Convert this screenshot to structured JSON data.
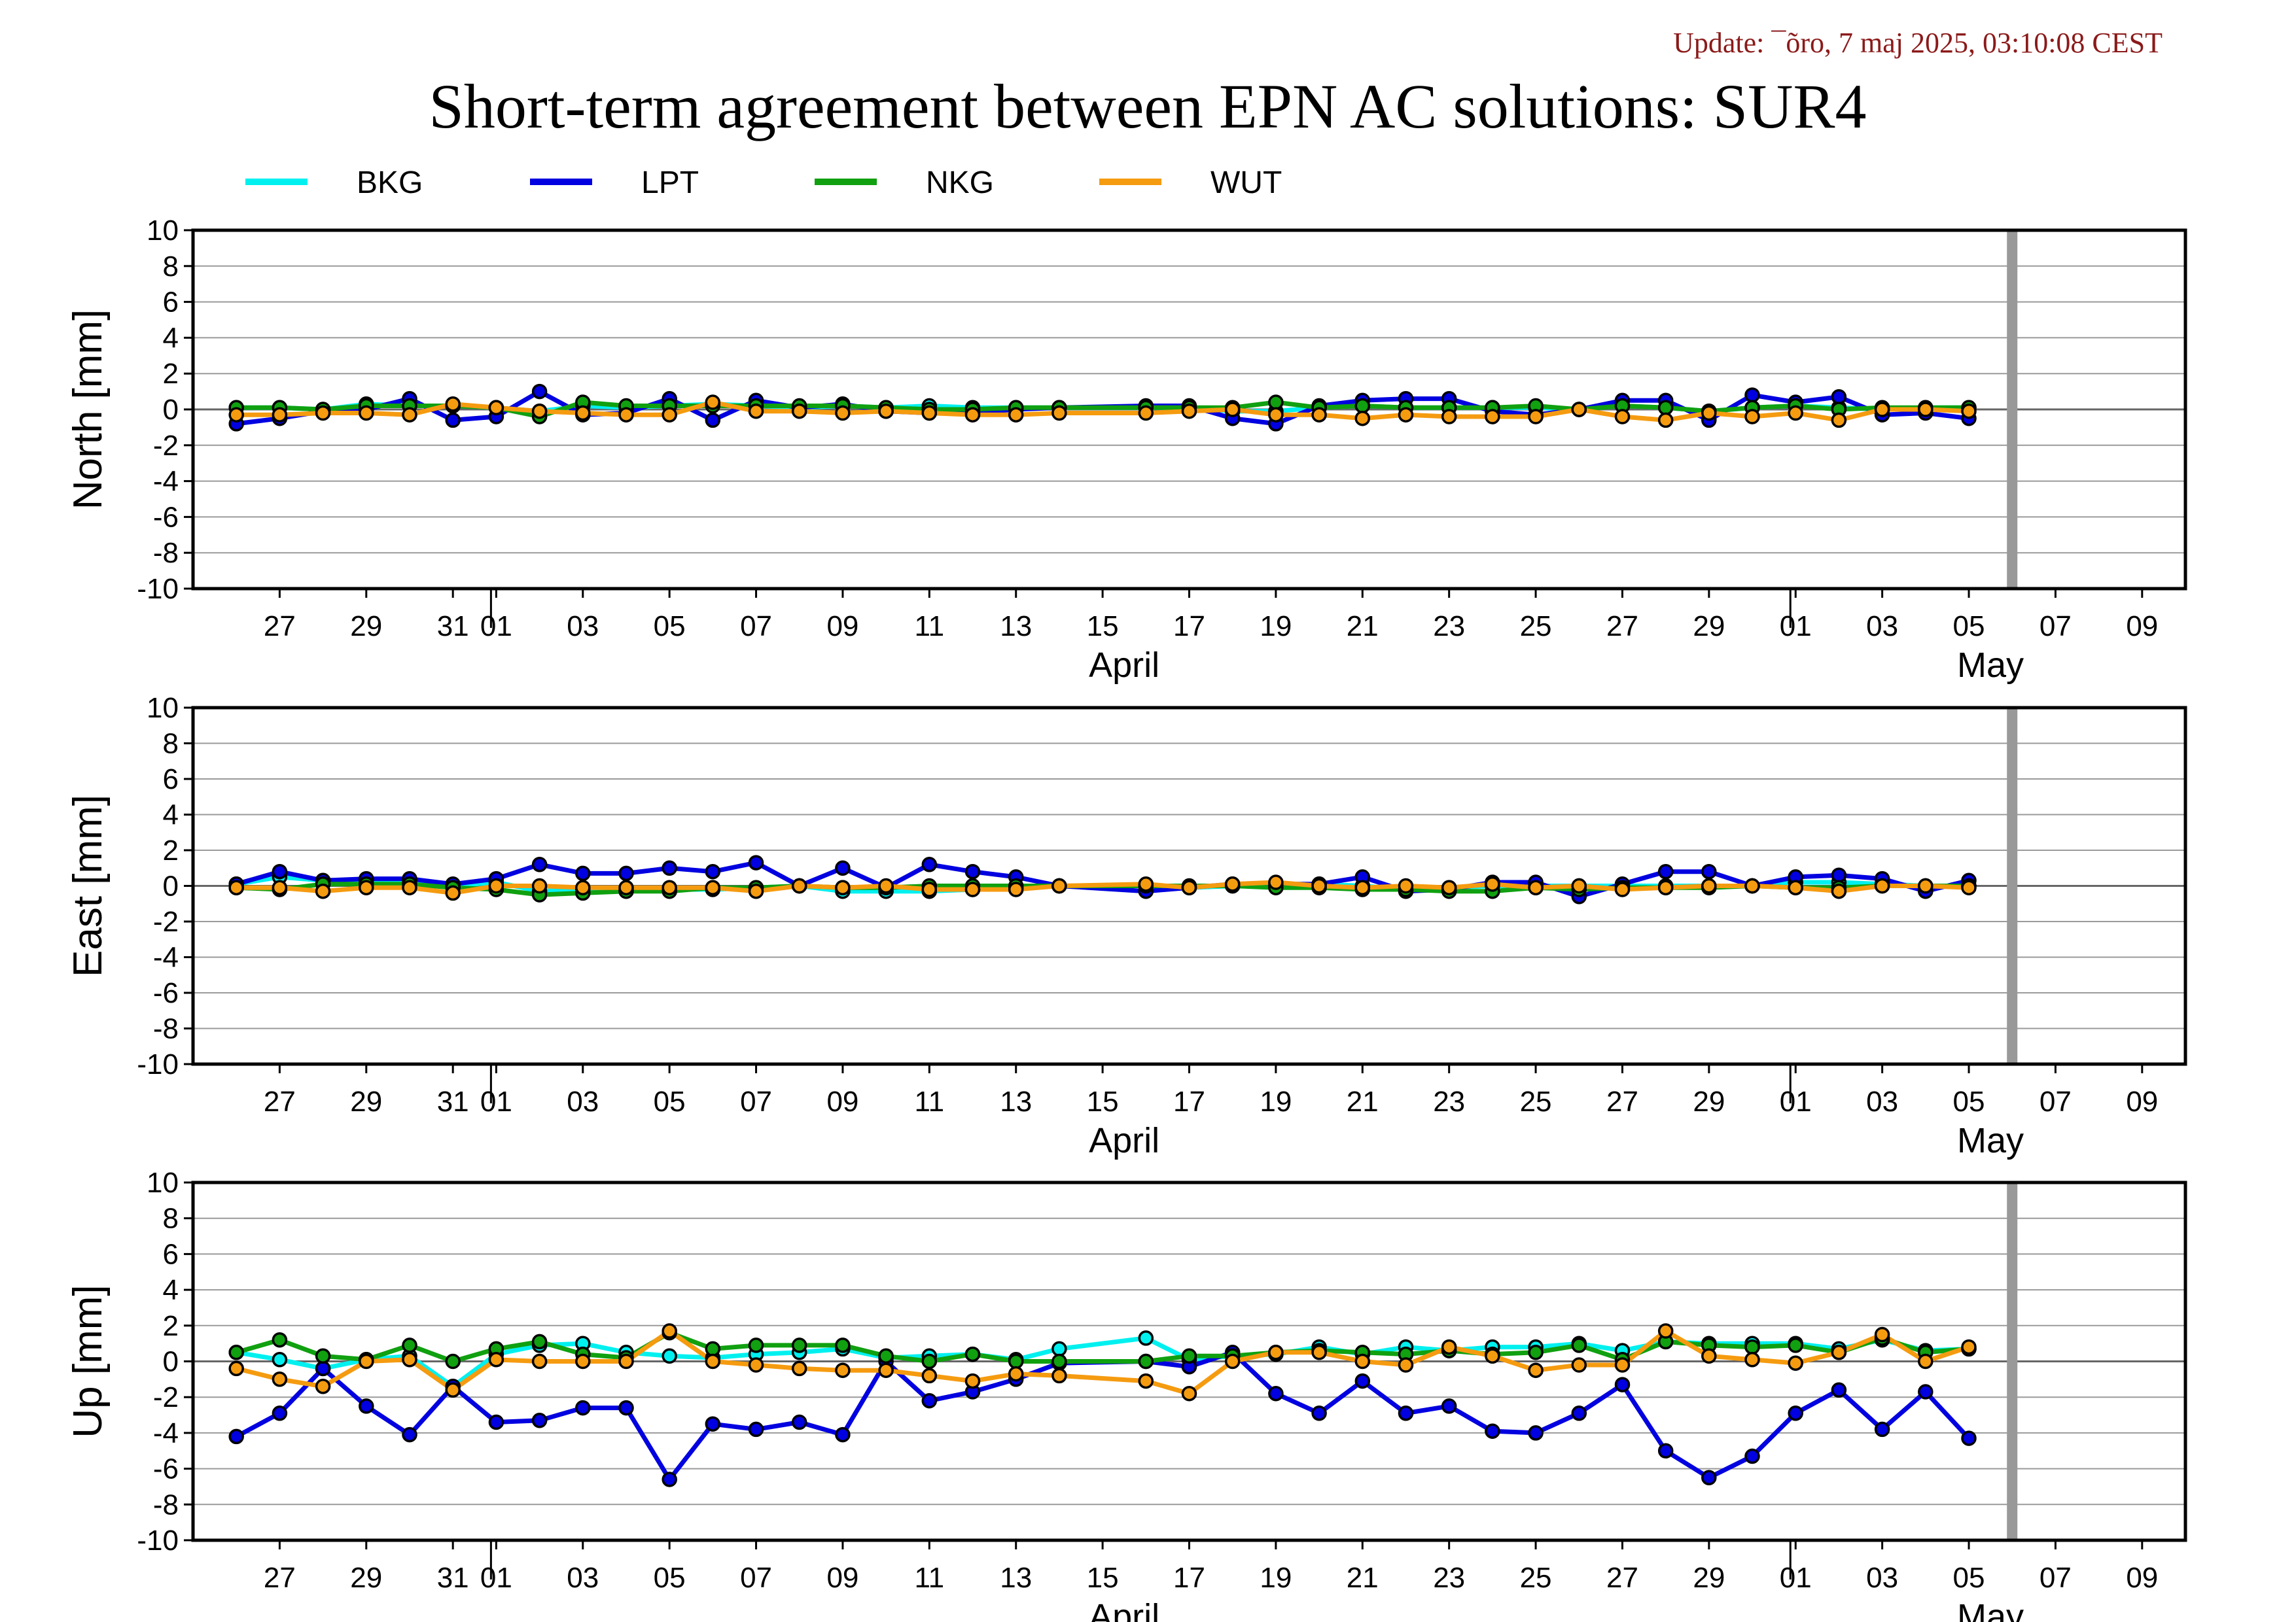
{
  "update_text": "Update: ¯õro, 7 maj 2025, 03:10:08 CEST",
  "chart_title": "Short-term agreement between EPN AC solutions: SUR4",
  "chart_data": [
    {
      "type": "line",
      "ylabel": "North [mm]",
      "ylim": [
        -10,
        10
      ],
      "yticks": [
        10,
        8,
        6,
        4,
        2,
        0,
        -2,
        -4,
        -6,
        -8,
        -10
      ],
      "x_domain": [
        "2025-03-25",
        "2025-05-10"
      ],
      "x_tick_dates": [
        "2025-03-27",
        "2025-03-29",
        "2025-03-31",
        "2025-04-01",
        "2025-04-03",
        "2025-04-05",
        "2025-04-07",
        "2025-04-09",
        "2025-04-11",
        "2025-04-13",
        "2025-04-15",
        "2025-04-17",
        "2025-04-19",
        "2025-04-21",
        "2025-04-23",
        "2025-04-25",
        "2025-04-27",
        "2025-04-29",
        "2025-05-01",
        "2025-05-03",
        "2025-05-05",
        "2025-05-07",
        "2025-05-09"
      ],
      "x_tick_labels": [
        "27",
        "29",
        "31",
        "01",
        "03",
        "05",
        "07",
        "09",
        "11",
        "13",
        "15",
        "17",
        "19",
        "21",
        "23",
        "25",
        "27",
        "29",
        "01",
        "03",
        "05",
        "07",
        "09"
      ],
      "month_labels": [
        {
          "date": "2025-04-15",
          "label": "April"
        },
        {
          "date": "2025-05-05",
          "label": "May"
        }
      ],
      "month_dividers": [
        "2025-04-01",
        "2025-05-01"
      ],
      "marker_date": "2025-05-06",
      "dates": [
        "2025-03-26",
        "2025-03-27",
        "2025-03-28",
        "2025-03-29",
        "2025-03-30",
        "2025-03-31",
        "2025-04-01",
        "2025-04-02",
        "2025-04-03",
        "2025-04-04",
        "2025-04-05",
        "2025-04-06",
        "2025-04-07",
        "2025-04-08",
        "2025-04-09",
        "2025-04-10",
        "2025-04-11",
        "2025-04-12",
        "2025-04-13",
        "2025-04-14",
        "2025-04-16",
        "2025-04-17",
        "2025-04-18",
        "2025-04-19",
        "2025-04-20",
        "2025-04-21",
        "2025-04-22",
        "2025-04-23",
        "2025-04-24",
        "2025-04-25",
        "2025-04-26",
        "2025-04-27",
        "2025-04-28",
        "2025-04-29",
        "2025-04-30",
        "2025-05-01",
        "2025-05-02",
        "2025-05-03",
        "2025-05-04",
        "2025-05-05"
      ],
      "series": [
        {
          "name": "BKG",
          "color": "#00f0f0",
          "values": [
            0.1,
            0.1,
            0.0,
            0.3,
            0.2,
            0.2,
            0.1,
            -0.1,
            0.2,
            0.1,
            0.2,
            0.3,
            0.2,
            0.1,
            0.2,
            0.1,
            0.2,
            0.1,
            0.1,
            0.1,
            0.1,
            0.1,
            -0.1,
            -0.1,
            0.1,
            0.2,
            0.1,
            0.1,
            0.1,
            0.1,
            0.0,
            0.2,
            0.1,
            -0.1,
            0.1,
            0.2,
            0.1,
            0.0,
            0.1,
            0.1
          ]
        },
        {
          "name": "LPT",
          "color": "#0000e0",
          "values": [
            -0.8,
            -0.5,
            -0.1,
            0.0,
            0.6,
            -0.6,
            -0.4,
            1.0,
            -0.3,
            -0.2,
            0.6,
            -0.6,
            0.5,
            0.1,
            0.3,
            -0.1,
            -0.2,
            -0.2,
            0.0,
            0.1,
            0.2,
            0.2,
            -0.5,
            -0.8,
            0.2,
            0.5,
            0.6,
            0.6,
            -0.1,
            -0.3,
            0.0,
            0.5,
            0.5,
            -0.6,
            0.8,
            0.4,
            0.7,
            -0.3,
            -0.2,
            -0.5
          ]
        },
        {
          "name": "NKG",
          "color": "#10a010",
          "values": [
            0.1,
            0.1,
            0.0,
            0.2,
            0.2,
            0.2,
            0.1,
            -0.4,
            0.4,
            0.2,
            0.2,
            0.2,
            0.2,
            0.2,
            0.2,
            0.1,
            0.0,
            0.0,
            0.1,
            0.1,
            0.1,
            0.1,
            0.1,
            0.4,
            0.1,
            0.2,
            0.1,
            0.1,
            0.1,
            0.2,
            0.0,
            0.2,
            0.1,
            -0.1,
            0.1,
            0.2,
            0.0,
            0.1,
            0.1,
            0.1
          ]
        },
        {
          "name": "WUT",
          "color": "#f59b10",
          "values": [
            -0.3,
            -0.3,
            -0.2,
            -0.2,
            -0.3,
            0.3,
            0.1,
            -0.1,
            -0.2,
            -0.3,
            -0.3,
            0.4,
            -0.1,
            -0.1,
            -0.2,
            -0.1,
            -0.2,
            -0.3,
            -0.3,
            -0.2,
            -0.2,
            -0.1,
            0.0,
            -0.3,
            -0.3,
            -0.5,
            -0.3,
            -0.4,
            -0.4,
            -0.4,
            0.0,
            -0.4,
            -0.6,
            -0.2,
            -0.4,
            -0.2,
            -0.6,
            0.0,
            0.0,
            -0.1
          ]
        }
      ]
    },
    {
      "type": "line",
      "ylabel": "East [mm]",
      "ylim": [
        -10,
        10
      ],
      "yticks": [
        10,
        8,
        6,
        4,
        2,
        0,
        -2,
        -4,
        -6,
        -8,
        -10
      ],
      "x_domain": [
        "2025-03-25",
        "2025-05-10"
      ],
      "x_tick_dates": [
        "2025-03-27",
        "2025-03-29",
        "2025-03-31",
        "2025-04-01",
        "2025-04-03",
        "2025-04-05",
        "2025-04-07",
        "2025-04-09",
        "2025-04-11",
        "2025-04-13",
        "2025-04-15",
        "2025-04-17",
        "2025-04-19",
        "2025-04-21",
        "2025-04-23",
        "2025-04-25",
        "2025-04-27",
        "2025-04-29",
        "2025-05-01",
        "2025-05-03",
        "2025-05-05",
        "2025-05-07",
        "2025-05-09"
      ],
      "x_tick_labels": [
        "27",
        "29",
        "31",
        "01",
        "03",
        "05",
        "07",
        "09",
        "11",
        "13",
        "15",
        "17",
        "19",
        "21",
        "23",
        "25",
        "27",
        "29",
        "01",
        "03",
        "05",
        "07",
        "09"
      ],
      "month_labels": [
        {
          "date": "2025-04-15",
          "label": "April"
        },
        {
          "date": "2025-05-05",
          "label": "May"
        }
      ],
      "month_dividers": [
        "2025-04-01",
        "2025-05-01"
      ],
      "marker_date": "2025-05-06",
      "dates": [
        "2025-03-26",
        "2025-03-27",
        "2025-03-28",
        "2025-03-29",
        "2025-03-30",
        "2025-03-31",
        "2025-04-01",
        "2025-04-02",
        "2025-04-03",
        "2025-04-04",
        "2025-04-05",
        "2025-04-06",
        "2025-04-07",
        "2025-04-08",
        "2025-04-09",
        "2025-04-10",
        "2025-04-11",
        "2025-04-12",
        "2025-04-13",
        "2025-04-14",
        "2025-04-16",
        "2025-04-17",
        "2025-04-18",
        "2025-04-19",
        "2025-04-20",
        "2025-04-21",
        "2025-04-22",
        "2025-04-23",
        "2025-04-24",
        "2025-04-25",
        "2025-04-26",
        "2025-04-27",
        "2025-04-28",
        "2025-04-29",
        "2025-04-30",
        "2025-05-01",
        "2025-05-02",
        "2025-05-03",
        "2025-05-04",
        "2025-05-05"
      ],
      "series": [
        {
          "name": "BKG",
          "color": "#00f0f0",
          "values": [
            0.1,
            0.5,
            0.3,
            0.3,
            0.3,
            0.0,
            0.2,
            -0.3,
            -0.2,
            -0.2,
            -0.2,
            -0.2,
            -0.1,
            0.0,
            -0.3,
            -0.3,
            -0.3,
            -0.2,
            -0.1,
            0.0,
            0.0,
            -0.1,
            0.0,
            0.0,
            0.1,
            0.0,
            -0.2,
            -0.1,
            0.0,
            0.0,
            0.0,
            0.0,
            0.0,
            0.0,
            0.0,
            0.2,
            0.2,
            0.1,
            0.0,
            0.0
          ]
        },
        {
          "name": "LPT",
          "color": "#0000e0",
          "values": [
            0.1,
            0.8,
            0.3,
            0.4,
            0.4,
            0.1,
            0.4,
            1.2,
            0.7,
            0.7,
            1.0,
            0.8,
            1.3,
            0.0,
            1.0,
            -0.1,
            1.2,
            0.8,
            0.5,
            0.0,
            -0.3,
            -0.1,
            0.1,
            0.1,
            0.1,
            0.5,
            -0.3,
            -0.2,
            0.2,
            0.2,
            -0.6,
            0.1,
            0.8,
            0.8,
            0.0,
            0.5,
            0.6,
            0.4,
            -0.3,
            0.3
          ]
        },
        {
          "name": "NKG",
          "color": "#10a010",
          "values": [
            -0.1,
            -0.2,
            0.1,
            0.1,
            0.1,
            -0.1,
            -0.2,
            -0.5,
            -0.4,
            -0.3,
            -0.3,
            -0.1,
            -0.1,
            0.0,
            -0.1,
            -0.1,
            0.0,
            0.0,
            0.0,
            0.0,
            0.0,
            0.0,
            0.0,
            -0.1,
            -0.1,
            -0.2,
            -0.2,
            -0.3,
            -0.3,
            -0.1,
            -0.2,
            -0.1,
            -0.1,
            -0.1,
            0.0,
            -0.1,
            -0.1,
            0.0,
            0.0,
            0.0
          ]
        },
        {
          "name": "WUT",
          "color": "#f59b10",
          "values": [
            -0.1,
            -0.1,
            -0.3,
            -0.1,
            -0.1,
            -0.4,
            0.0,
            0.0,
            -0.1,
            -0.1,
            -0.1,
            -0.1,
            -0.3,
            0.0,
            -0.1,
            0.0,
            -0.2,
            -0.2,
            -0.2,
            0.0,
            0.1,
            -0.1,
            0.1,
            0.2,
            0.0,
            -0.1,
            0.0,
            -0.1,
            0.1,
            -0.1,
            0.0,
            -0.2,
            -0.1,
            0.0,
            0.0,
            -0.1,
            -0.3,
            0.0,
            0.0,
            -0.1
          ]
        }
      ]
    },
    {
      "type": "line",
      "ylabel": "Up [mm]",
      "ylim": [
        -10,
        10
      ],
      "yticks": [
        10,
        8,
        6,
        4,
        2,
        0,
        -2,
        -4,
        -6,
        -8,
        -10
      ],
      "x_domain": [
        "2025-03-25",
        "2025-05-10"
      ],
      "x_tick_dates": [
        "2025-03-27",
        "2025-03-29",
        "2025-03-31",
        "2025-04-01",
        "2025-04-03",
        "2025-04-05",
        "2025-04-07",
        "2025-04-09",
        "2025-04-11",
        "2025-04-13",
        "2025-04-15",
        "2025-04-17",
        "2025-04-19",
        "2025-04-21",
        "2025-04-23",
        "2025-04-25",
        "2025-04-27",
        "2025-04-29",
        "2025-05-01",
        "2025-05-03",
        "2025-05-05",
        "2025-05-07",
        "2025-05-09"
      ],
      "x_tick_labels": [
        "27",
        "29",
        "31",
        "01",
        "03",
        "05",
        "07",
        "09",
        "11",
        "13",
        "15",
        "17",
        "19",
        "21",
        "23",
        "25",
        "27",
        "29",
        "01",
        "03",
        "05",
        "07",
        "09"
      ],
      "month_labels": [
        {
          "date": "2025-04-15",
          "label": "April"
        },
        {
          "date": "2025-05-05",
          "label": "May"
        }
      ],
      "month_dividers": [
        "2025-04-01",
        "2025-05-01"
      ],
      "marker_date": "2025-05-06",
      "dates": [
        "2025-03-26",
        "2025-03-27",
        "2025-03-28",
        "2025-03-29",
        "2025-03-30",
        "2025-03-31",
        "2025-04-01",
        "2025-04-02",
        "2025-04-03",
        "2025-04-04",
        "2025-04-05",
        "2025-04-06",
        "2025-04-07",
        "2025-04-08",
        "2025-04-09",
        "2025-04-10",
        "2025-04-11",
        "2025-04-12",
        "2025-04-13",
        "2025-04-14",
        "2025-04-16",
        "2025-04-17",
        "2025-04-18",
        "2025-04-19",
        "2025-04-20",
        "2025-04-21",
        "2025-04-22",
        "2025-04-23",
        "2025-04-24",
        "2025-04-25",
        "2025-04-26",
        "2025-04-27",
        "2025-04-28",
        "2025-04-29",
        "2025-04-30",
        "2025-05-01",
        "2025-05-02",
        "2025-05-03",
        "2025-05-04",
        "2025-05-05"
      ],
      "series": [
        {
          "name": "BKG",
          "color": "#00f0f0",
          "values": [
            0.5,
            0.1,
            -0.4,
            0.1,
            0.3,
            -1.4,
            0.4,
            0.9,
            1.0,
            0.5,
            0.3,
            0.2,
            0.4,
            0.5,
            0.7,
            0.2,
            0.3,
            0.4,
            0.1,
            0.7,
            1.3,
            0.1,
            0.3,
            0.4,
            0.8,
            0.4,
            0.8,
            0.6,
            0.8,
            0.8,
            1.0,
            0.6,
            1.1,
            1.0,
            1.0,
            1.0,
            0.7,
            1.2,
            0.6,
            0.7
          ]
        },
        {
          "name": "LPT",
          "color": "#0000e0",
          "values": [
            -4.2,
            -2.9,
            -0.4,
            -2.5,
            -4.1,
            -1.4,
            -3.4,
            -3.3,
            -2.6,
            -2.6,
            -6.6,
            -3.5,
            -3.8,
            -3.4,
            -4.1,
            0.0,
            -2.2,
            -1.7,
            -1.0,
            -0.1,
            0.0,
            -0.3,
            0.5,
            -1.8,
            -2.9,
            -1.1,
            -2.9,
            -2.5,
            -3.9,
            -4.0,
            -2.9,
            -1.3,
            -5.0,
            -6.5,
            -5.3,
            -2.9,
            -1.6,
            -3.8,
            -1.7,
            -4.3
          ]
        },
        {
          "name": "NKG",
          "color": "#10a010",
          "values": [
            0.5,
            1.2,
            0.3,
            0.1,
            0.9,
            0.0,
            0.7,
            1.1,
            0.4,
            0.2,
            1.6,
            0.7,
            0.9,
            0.9,
            0.9,
            0.3,
            0.0,
            0.4,
            0.0,
            0.0,
            0.0,
            0.3,
            0.3,
            0.5,
            0.6,
            0.5,
            0.4,
            0.6,
            0.4,
            0.5,
            0.9,
            0.1,
            1.1,
            0.9,
            0.8,
            0.9,
            0.5,
            1.3,
            0.5,
            0.7
          ]
        },
        {
          "name": "WUT",
          "color": "#f59b10",
          "values": [
            -0.4,
            -1.0,
            -1.4,
            0.0,
            0.1,
            -1.6,
            0.1,
            0.0,
            0.0,
            0.0,
            1.7,
            0.0,
            -0.2,
            -0.4,
            -0.5,
            -0.5,
            -0.8,
            -1.1,
            -0.7,
            -0.8,
            -1.1,
            -1.8,
            0.0,
            0.5,
            0.5,
            0.0,
            -0.2,
            0.8,
            0.3,
            -0.5,
            -0.2,
            -0.2,
            1.7,
            0.3,
            0.1,
            -0.1,
            0.5,
            1.5,
            0.0,
            0.8
          ]
        }
      ]
    }
  ]
}
